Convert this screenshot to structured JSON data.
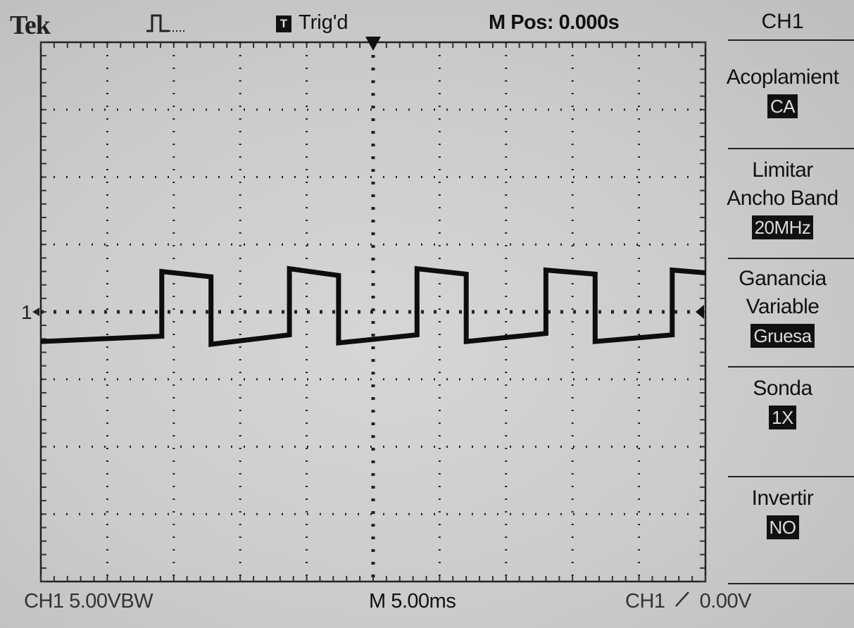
{
  "header": {
    "brand": "Tek",
    "acquire_icon": "pulse-run-icon",
    "trigger_indicator": "T",
    "trigger_status": "Trig'd",
    "horizontal_position": "M Pos: 0.000s"
  },
  "menu": {
    "title": "CH1",
    "items": [
      {
        "label_lines": [
          "Acoplamient"
        ],
        "value": "CA"
      },
      {
        "label_lines": [
          "Limitar",
          "Ancho Band"
        ],
        "value": "20MHz"
      },
      {
        "label_lines": [
          "Ganancia",
          "Variable"
        ],
        "value": "Gruesa"
      },
      {
        "label_lines": [
          "Sonda"
        ],
        "value": "1X"
      },
      {
        "label_lines": [
          "Invertir"
        ],
        "value": "NO"
      }
    ]
  },
  "footer": {
    "channel_scale": "CH1  5.00VBW",
    "timebase": "M 5.00ms",
    "trigger_source": "CH1",
    "trigger_slope_icon": "rising-edge-icon",
    "trigger_level": "0.00V"
  },
  "channel_marker": "1",
  "colors": {
    "background": "#cfcfcf",
    "foreground": "#111111",
    "highlight_bg": "#111111",
    "highlight_fg": "#dddddd"
  },
  "display": {
    "time_per_div_ms": 5,
    "volts_per_div": 5,
    "h_divisions": 10,
    "v_divisions": 8,
    "channel_ground_div_from_bottom": 4,
    "chart_data": {
      "type": "line",
      "title": "",
      "xlabel": "",
      "ylabel": "",
      "xlim": [
        -25,
        25
      ],
      "ylim": [
        -20,
        20
      ],
      "grid": true,
      "series": [
        {
          "name": "",
          "x": [
            -25,
            -15.9,
            -15.9,
            -12.2,
            -12.2,
            -6.3,
            -6.3,
            -2.6,
            -2.6,
            3.3,
            3.3,
            7.0,
            7.0,
            13.0,
            13.0,
            16.7,
            16.7,
            22.5,
            22.5,
            25
          ],
          "y": [
            -2.2,
            -1.8,
            3.0,
            2.6,
            -2.4,
            -1.7,
            3.2,
            2.7,
            -2.3,
            -1.7,
            3.2,
            2.8,
            -2.2,
            -1.6,
            3.1,
            2.8,
            -2.2,
            -1.7,
            3.1,
            2.9
          ]
        }
      ]
    }
  }
}
